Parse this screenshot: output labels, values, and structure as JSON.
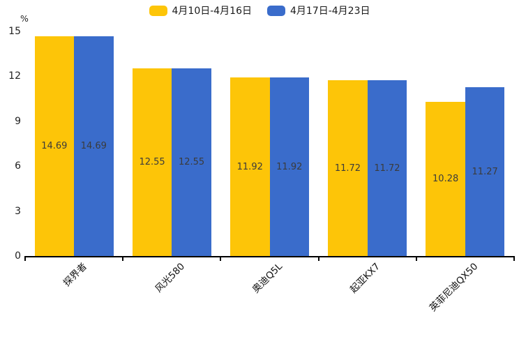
{
  "chart_data": {
    "type": "bar",
    "title": "",
    "xlabel": "",
    "ylabel": "%",
    "categories": [
      "探界者",
      "风光580",
      "奥迪Q5L",
      "起亚KX7",
      "英菲尼迪QX50"
    ],
    "series": [
      {
        "name": "4月10日-4月16日",
        "color": "#fdc508",
        "values": [
          14.69,
          12.55,
          11.92,
          11.72,
          10.28
        ]
      },
      {
        "name": "4月17日-4月23日",
        "color": "#3a6ccb",
        "values": [
          14.69,
          12.55,
          11.92,
          11.72,
          11.27
        ]
      }
    ],
    "ylim": [
      0,
      15
    ],
    "yticks": [
      0,
      3,
      6,
      9,
      12,
      15
    ],
    "grid": false,
    "legend_position": "top",
    "value_label_position": "inside-center"
  },
  "colors": {
    "background": "#ffffff",
    "axis": "#000000",
    "value_label": "#3b3b3b",
    "tick_label": "#1f1f1f"
  }
}
